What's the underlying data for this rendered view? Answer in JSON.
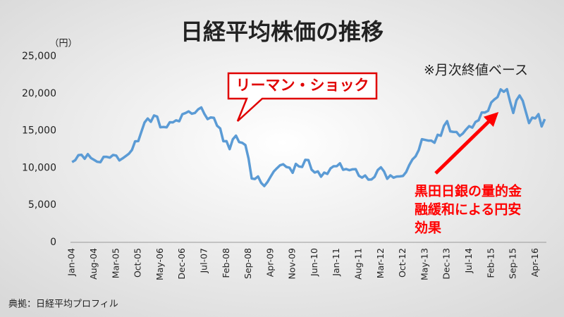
{
  "chart_data": {
    "type": "line",
    "title": "日経平均株価の推移",
    "y_unit": "（円）",
    "note": "※月次終値ベース",
    "source": "典拠：日経平均プロフィル",
    "callout": "リーマン・ショック",
    "annotation_lines": [
      "黒田日銀の量的金",
      "融緩和による円安",
      "効果"
    ],
    "annotation_color": "#ff0000",
    "categories": [
      "Jan-04",
      null,
      null,
      null,
      null,
      null,
      null,
      "Aug-04",
      null,
      null,
      null,
      null,
      null,
      null,
      "Mar-05",
      null,
      null,
      null,
      null,
      null,
      null,
      "Oct-05",
      null,
      null,
      null,
      null,
      null,
      null,
      "May-06",
      null,
      null,
      null,
      null,
      null,
      null,
      "Dec-06",
      null,
      null,
      null,
      null,
      null,
      null,
      "Jul-07",
      null,
      null,
      null,
      null,
      null,
      null,
      "Feb-08",
      null,
      null,
      null,
      null,
      null,
      null,
      "Sep-08",
      null,
      null,
      null,
      null,
      null,
      null,
      "Apr-09",
      null,
      null,
      null,
      null,
      null,
      null,
      "Nov-09",
      null,
      null,
      null,
      null,
      null,
      null,
      "Jun-10",
      null,
      null,
      null,
      null,
      null,
      null,
      "Jan-11",
      null,
      null,
      null,
      null,
      null,
      null,
      "Aug-11",
      null,
      null,
      null,
      null,
      null,
      null,
      "Mar-12",
      null,
      null,
      null,
      null,
      null,
      null,
      "Oct-12",
      null,
      null,
      null,
      null,
      null,
      null,
      "May-13",
      null,
      null,
      null,
      null,
      null,
      null,
      "Dec-13",
      null,
      null,
      null,
      null,
      null,
      null,
      "Jul-14",
      null,
      null,
      null,
      null,
      null,
      null,
      "Feb-15",
      null,
      null,
      null,
      null,
      null,
      null,
      "Sep-15",
      null,
      null,
      null,
      null,
      null,
      null,
      "Apr-16",
      null,
      null,
      null
    ],
    "series": [
      {
        "color": "#5b9bd5",
        "values": [
          10783,
          11042,
          11715,
          11761,
          11236,
          11858,
          11326,
          11082,
          10824,
          10771,
          11489,
          11489,
          11388,
          11740,
          11668,
          11009,
          11277,
          11584,
          11900,
          12414,
          13574,
          13607,
          14872,
          16111,
          16650,
          16205,
          17059,
          16906,
          15467,
          15505,
          15457,
          16141,
          16128,
          16399,
          16274,
          17226,
          17383,
          17604,
          17288,
          17400,
          17876,
          18138,
          17249,
          16569,
          16786,
          16737,
          15681,
          15308,
          13592,
          13603,
          12526,
          13850,
          14339,
          13481,
          13377,
          13073,
          11260,
          8577,
          8512,
          8860,
          7994,
          7568,
          8110,
          8828,
          9523,
          9958,
          10357,
          10493,
          10133,
          10035,
          9346,
          10546,
          10198,
          10126,
          11090,
          11057,
          9769,
          9383,
          9537,
          8824,
          9369,
          9202,
          9937,
          10229,
          10238,
          10624,
          9755,
          9850,
          9694,
          9816,
          9833,
          8955,
          8700,
          8988,
          8434,
          8455,
          8803,
          9723,
          10084,
          9521,
          8543,
          9007,
          8695,
          8840,
          8870,
          8928,
          9446,
          10395,
          11139,
          11559,
          12398,
          13861,
          13775,
          13677,
          13668,
          13389,
          14456,
          14328,
          15662,
          16291,
          14915,
          14841,
          14828,
          14304,
          14632,
          15162,
          15621,
          15425,
          16174,
          16414,
          17460,
          17451,
          17674,
          18798,
          19207,
          19520,
          20563,
          20236,
          20585,
          18890,
          17388,
          19083,
          19747,
          19034,
          17518,
          16027,
          16759,
          16666,
          17235,
          15576,
          16569
        ]
      }
    ],
    "ylim": [
      0,
      25000
    ],
    "yticks": [
      0,
      {
        "value": 5000,
        "label": "5,000"
      },
      {
        "value": 10000,
        "label": "10,000"
      },
      {
        "value": 15000,
        "label": "15,000"
      },
      {
        "value": 20000,
        "label": "20,000"
      },
      {
        "value": 25000,
        "label": "25,000"
      }
    ],
    "grid": false
  }
}
